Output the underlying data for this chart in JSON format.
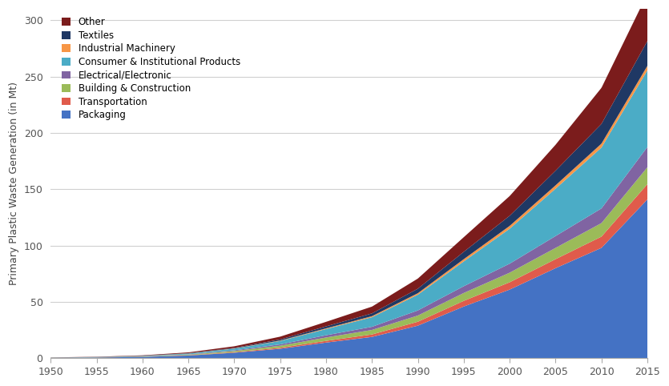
{
  "years": [
    1950,
    1955,
    1960,
    1965,
    1970,
    1975,
    1980,
    1985,
    1990,
    1995,
    2000,
    2005,
    2010,
    2015
  ],
  "sectors": [
    "Packaging",
    "Transportation",
    "Building & Construction",
    "Electrical/Electronic",
    "Consumer & Institutional Products",
    "Industrial Machinery",
    "Textiles",
    "Other"
  ],
  "colors": [
    "#4472C4",
    "#E05B4B",
    "#9BBB59",
    "#8064A2",
    "#4BACC6",
    "#F79646",
    "#1F3864",
    "#7B1C1C"
  ],
  "data": {
    "Packaging": [
      0.4,
      0.7,
      1.3,
      2.5,
      5.0,
      8.5,
      14.0,
      19.0,
      29.0,
      46.0,
      61.0,
      80.0,
      98.0,
      141.0
    ],
    "Transportation": [
      0.04,
      0.07,
      0.12,
      0.25,
      0.5,
      0.9,
      1.5,
      2.2,
      3.5,
      5.0,
      6.5,
      8.0,
      10.0,
      13.5
    ],
    "Building & Construction": [
      0.08,
      0.13,
      0.25,
      0.5,
      1.0,
      1.8,
      3.0,
      4.0,
      5.5,
      7.0,
      8.5,
      10.0,
      12.0,
      15.0
    ],
    "Electrical/Electronic": [
      0.04,
      0.07,
      0.13,
      0.3,
      0.6,
      1.2,
      2.0,
      2.8,
      4.5,
      6.0,
      8.0,
      10.5,
      13.0,
      18.0
    ],
    "Consumer & Institutional Products": [
      0.1,
      0.18,
      0.35,
      0.7,
      1.5,
      3.0,
      5.5,
      8.5,
      14.0,
      22.0,
      31.0,
      42.0,
      54.0,
      68.0
    ],
    "Industrial Machinery": [
      0.02,
      0.03,
      0.06,
      0.1,
      0.2,
      0.35,
      0.6,
      0.9,
      1.3,
      2.0,
      2.5,
      3.0,
      3.5,
      4.0
    ],
    "Textiles": [
      0.04,
      0.07,
      0.13,
      0.25,
      0.5,
      1.0,
      1.8,
      2.5,
      4.0,
      6.5,
      9.0,
      13.0,
      17.5,
      22.0
    ],
    "Other": [
      0.1,
      0.18,
      0.35,
      0.7,
      1.4,
      2.5,
      4.0,
      6.0,
      9.0,
      13.0,
      17.5,
      23.0,
      32.0,
      42.0
    ]
  },
  "ylabel": "Primary Plastic Waste Generation (in Mt)",
  "ylim": [
    0,
    310
  ],
  "xlim": [
    1950,
    2015
  ],
  "yticks": [
    0,
    50,
    100,
    150,
    200,
    250,
    300
  ],
  "xticks": [
    1950,
    1955,
    1960,
    1965,
    1970,
    1975,
    1980,
    1985,
    1990,
    1995,
    2000,
    2005,
    2010,
    2015
  ],
  "background_color": "#FFFFFF",
  "grid_color": "#D0D0D0",
  "legend_order": [
    "Other",
    "Textiles",
    "Industrial Machinery",
    "Consumer & Institutional Products",
    "Electrical/Electronic",
    "Building & Construction",
    "Transportation",
    "Packaging"
  ]
}
